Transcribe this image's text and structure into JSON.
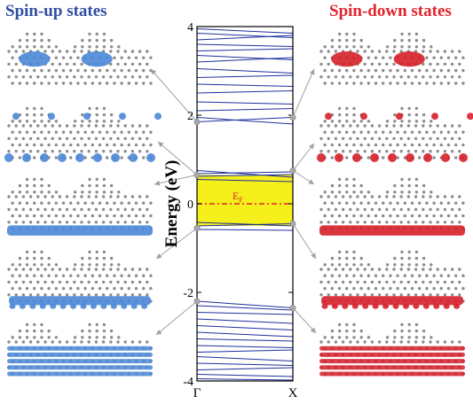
{
  "headers": {
    "left": "Spin-up states",
    "right": "Spin-down states"
  },
  "plot": {
    "ylabel": "Energy (eV)",
    "fermi_label": "E",
    "fermi_sub": "F",
    "y_ticks": [
      "4",
      "2",
      "0",
      "-2",
      "-4"
    ],
    "x_ticks": [
      "Γ",
      "X"
    ]
  },
  "colors": {
    "up": "#2f4ea3",
    "down": "#e0242c",
    "band": "#1f2f9c",
    "gap": "#f5ef1b",
    "up_iso": "#4a87d6",
    "down_iso": "#d6202a",
    "atom": "#8c8c8c",
    "arrow": "#a0a0a0"
  },
  "chart_data": {
    "type": "line",
    "xlabel": "",
    "ylabel": "Energy (eV)",
    "ylim": [
      -4,
      4
    ],
    "x_points": [
      "Γ",
      "X"
    ],
    "fermi_level": 0,
    "highlighted_gap": [
      -0.5,
      0.65
    ],
    "marked_states": [
      {
        "k": "Γ",
        "energy": 1.85,
        "spin": "up"
      },
      {
        "k": "Γ",
        "energy": 0.65,
        "spin": "up"
      },
      {
        "k": "Γ",
        "energy": -0.55,
        "spin": "up"
      },
      {
        "k": "Γ",
        "energy": -2.2,
        "spin": "up"
      },
      {
        "k": "X",
        "energy": 1.95,
        "spin": "down"
      },
      {
        "k": "X",
        "energy": 0.75,
        "spin": "down"
      },
      {
        "k": "X",
        "energy": -0.45,
        "spin": "down"
      },
      {
        "k": "X",
        "energy": -2.35,
        "spin": "down"
      }
    ],
    "series": [
      {
        "values": [
          3.95,
          3.85
        ]
      },
      {
        "values": [
          3.85,
          3.75
        ]
      },
      {
        "values": [
          3.7,
          3.8
        ]
      },
      {
        "values": [
          3.6,
          3.55
        ]
      },
      {
        "values": [
          3.45,
          3.5
        ]
      },
      {
        "values": [
          3.35,
          3.25
        ]
      },
      {
        "values": [
          3.2,
          3.3
        ]
      },
      {
        "values": [
          3.05,
          2.95
        ]
      },
      {
        "values": [
          2.85,
          2.9
        ]
      },
      {
        "values": [
          2.7,
          2.65
        ]
      },
      {
        "values": [
          2.5,
          2.55
        ]
      },
      {
        "values": [
          2.3,
          2.25
        ]
      },
      {
        "values": [
          2.1,
          2.15
        ]
      },
      {
        "values": [
          1.95,
          1.8
        ]
      },
      {
        "values": [
          1.85,
          1.95
        ]
      },
      {
        "values": [
          0.75,
          0.6
        ]
      },
      {
        "values": [
          0.68,
          0.72
        ]
      },
      {
        "values": [
          0.62,
          0.66
        ]
      },
      {
        "values": [
          0.55,
          0.5
        ]
      },
      {
        "values": [
          -0.42,
          -0.5
        ]
      },
      {
        "values": [
          -0.5,
          -0.45
        ]
      },
      {
        "values": [
          -0.58,
          -0.6
        ]
      },
      {
        "values": [
          -2.2,
          -2.35
        ]
      },
      {
        "values": [
          -2.3,
          -2.4
        ]
      },
      {
        "values": [
          -2.45,
          -2.5
        ]
      },
      {
        "values": [
          -2.6,
          -2.7
        ]
      },
      {
        "values": [
          -2.75,
          -2.85
        ]
      },
      {
        "values": [
          -2.9,
          -3.0
        ]
      },
      {
        "values": [
          -3.05,
          -3.1
        ]
      },
      {
        "values": [
          -3.2,
          -3.25
        ]
      },
      {
        "values": [
          -3.35,
          -3.3
        ]
      },
      {
        "values": [
          -3.45,
          -3.55
        ]
      },
      {
        "values": [
          -3.6,
          -3.65
        ]
      },
      {
        "values": [
          -3.75,
          -3.7
        ]
      },
      {
        "values": [
          -3.85,
          -3.9
        ]
      },
      {
        "values": [
          -3.95,
          -3.98
        ]
      }
    ]
  }
}
